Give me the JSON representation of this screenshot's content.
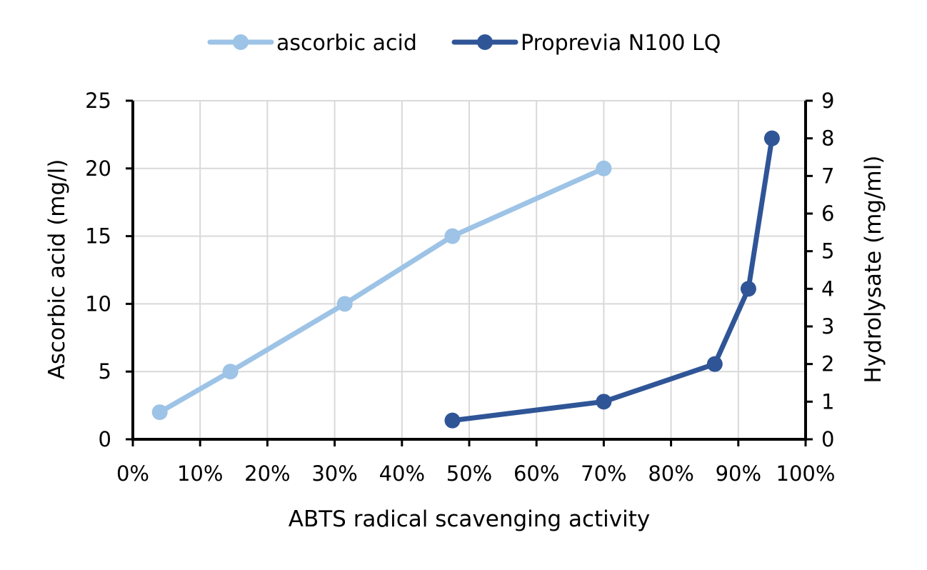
{
  "chart_data": {
    "type": "line",
    "xlabel": "ABTS radical scavenging activity",
    "ylabel_left": "Ascorbic acid (mg/l)",
    "ylabel_right": "Hydrolysate (mg/ml)",
    "xlim": [
      0,
      100
    ],
    "ylim_left": [
      0,
      25
    ],
    "ylim_right": [
      0,
      9
    ],
    "x_ticks": [
      "0%",
      "10%",
      "20%",
      "30%",
      "40%",
      "50%",
      "60%",
      "70%",
      "80%",
      "90%",
      "100%"
    ],
    "y_left_ticks": [
      "0",
      "5",
      "10",
      "15",
      "20",
      "25"
    ],
    "y_right_ticks": [
      "0",
      "1",
      "2",
      "3",
      "4",
      "5",
      "6",
      "7",
      "8",
      "9"
    ],
    "grid": true,
    "legend_position": "top",
    "series": [
      {
        "name": "ascorbic acid",
        "axis": "left",
        "color": "#9dc3e6",
        "x": [
          4,
          14.5,
          31.5,
          47.5,
          70
        ],
        "y": [
          2,
          5,
          10,
          15,
          20
        ]
      },
      {
        "name": "Proprevia N100 LQ",
        "axis": "right",
        "color": "#2f5597",
        "x": [
          47.5,
          70,
          86.5,
          91.5,
          95
        ],
        "y": [
          0.5,
          1,
          2,
          4,
          8
        ]
      }
    ]
  }
}
